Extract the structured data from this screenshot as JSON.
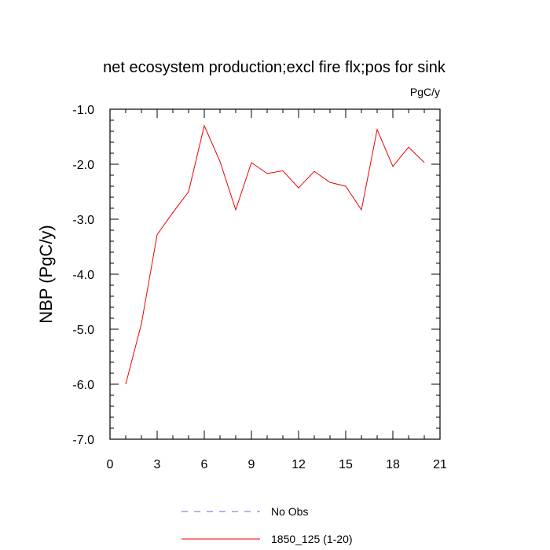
{
  "chart_data": {
    "type": "line",
    "title": "net ecosystem production;excl fire flx;pos for sink",
    "units": "PgC/y",
    "xlabel": "",
    "ylabel": "NBP  (PgC/y)",
    "xlim": [
      0,
      21
    ],
    "ylim": [
      -7.0,
      -1.0
    ],
    "xticks": [
      "0",
      "3",
      "6",
      "9",
      "12",
      "15",
      "18",
      "21"
    ],
    "yticks": [
      "-1.0",
      "-2.0",
      "-3.0",
      "-4.0",
      "-5.0",
      "-6.0",
      "-7.0"
    ],
    "grid": false,
    "legend_position": "bottom",
    "series": [
      {
        "name": "No Obs",
        "color": "#6666ee",
        "style": "dashed",
        "x": [],
        "y": []
      },
      {
        "name": "1850_125 (1-20)",
        "color": "#ee0000",
        "style": "solid",
        "x": [
          1,
          2,
          3,
          4,
          5,
          6,
          7,
          8,
          9,
          10,
          11,
          12,
          13,
          14,
          15,
          16,
          17,
          18,
          19,
          20
        ],
        "y": [
          -6.0,
          -4.9,
          -3.28,
          -2.88,
          -2.5,
          -1.3,
          -1.95,
          -2.83,
          -1.97,
          -2.17,
          -2.12,
          -2.43,
          -2.13,
          -2.33,
          -2.4,
          -2.83,
          -1.37,
          -2.04,
          -1.69,
          -1.97
        ]
      }
    ]
  }
}
